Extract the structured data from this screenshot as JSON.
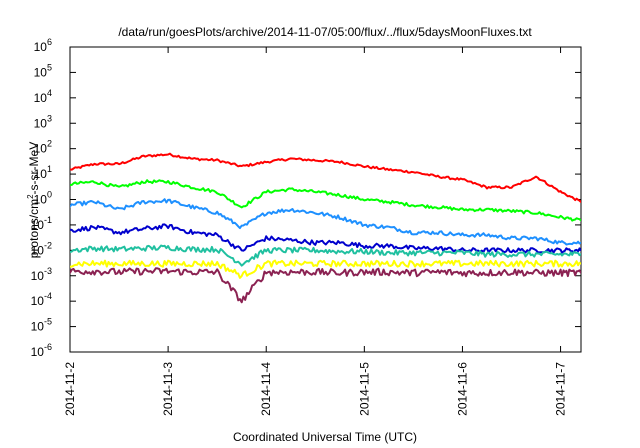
{
  "chart_data": {
    "type": "line",
    "title": "/data/run/goesPlots/archive/2014-11-07/05:00/flux/../flux/5daysMoonFluxes.txt",
    "xlabel": "Coordinated Universal Time (UTC)",
    "ylabel_parts": {
      "base": "protons/cm",
      "sup": "2",
      "rest": "-s-sr-MeV"
    },
    "x_axis": {
      "type": "date",
      "range": [
        "2014-11-02T00:00",
        "2014-11-07T05:00"
      ],
      "ticks": [
        "2014-11-2",
        "2014-11-3",
        "2014-11-4",
        "2014-11-5",
        "2014-11-6",
        "2014-11-7"
      ]
    },
    "y_axis": {
      "scale": "log",
      "range": [
        1e-06,
        1000000.0
      ],
      "tick_exponents": [
        "-6",
        "-5",
        "-4",
        "-3",
        "-2",
        "-1",
        "0",
        "1",
        "2",
        "3",
        "4",
        "5",
        "6"
      ],
      "tick_base": "10"
    },
    "grid": false,
    "legend": "none",
    "series": [
      {
        "color": "#ff0000",
        "x": [
          "2014-11-02T00:00",
          "2014-11-02T06:00",
          "2014-11-02T12:00",
          "2014-11-02T18:00",
          "2014-11-03T00:00",
          "2014-11-03T06:00",
          "2014-11-03T12:00",
          "2014-11-03T18:00",
          "2014-11-04T00:00",
          "2014-11-04T06:00",
          "2014-11-04T12:00",
          "2014-11-04T18:00",
          "2014-11-05T00:00",
          "2014-11-05T06:00",
          "2014-11-05T12:00",
          "2014-11-05T18:00",
          "2014-11-06T00:00",
          "2014-11-06T06:00",
          "2014-11-06T12:00",
          "2014-11-06T18:00",
          "2014-11-07T00:00",
          "2014-11-07T05:00"
        ],
        "y": [
          15,
          25,
          25,
          50,
          60,
          40,
          35,
          20,
          30,
          40,
          35,
          30,
          20,
          15,
          12,
          8,
          6,
          3,
          3,
          8,
          2,
          0.8
        ]
      },
      {
        "color": "#00ff00",
        "x": [
          "2014-11-02T00:00",
          "2014-11-02T06:00",
          "2014-11-02T12:00",
          "2014-11-02T18:00",
          "2014-11-03T00:00",
          "2014-11-03T06:00",
          "2014-11-03T12:00",
          "2014-11-03T18:00",
          "2014-11-04T00:00",
          "2014-11-04T06:00",
          "2014-11-04T12:00",
          "2014-11-04T18:00",
          "2014-11-05T00:00",
          "2014-11-05T06:00",
          "2014-11-05T12:00",
          "2014-11-05T18:00",
          "2014-11-06T00:00",
          "2014-11-06T06:00",
          "2014-11-06T12:00",
          "2014-11-06T18:00",
          "2014-11-07T00:00",
          "2014-11-07T05:00"
        ],
        "y": [
          4,
          5,
          3,
          5,
          5,
          3,
          2,
          0.5,
          2,
          2.5,
          2,
          1.5,
          1,
          0.8,
          0.6,
          0.5,
          0.4,
          0.4,
          0.35,
          0.3,
          0.2,
          0.15
        ]
      },
      {
        "color": "#1e90ff",
        "x": [
          "2014-11-02T00:00",
          "2014-11-02T06:00",
          "2014-11-02T12:00",
          "2014-11-02T18:00",
          "2014-11-03T00:00",
          "2014-11-03T06:00",
          "2014-11-03T12:00",
          "2014-11-03T18:00",
          "2014-11-04T00:00",
          "2014-11-04T06:00",
          "2014-11-04T12:00",
          "2014-11-04T18:00",
          "2014-11-05T00:00",
          "2014-11-05T06:00",
          "2014-11-05T12:00",
          "2014-11-05T18:00",
          "2014-11-06T00:00",
          "2014-11-06T06:00",
          "2014-11-06T12:00",
          "2014-11-06T18:00",
          "2014-11-07T00:00",
          "2014-11-07T05:00"
        ],
        "y": [
          0.6,
          0.8,
          0.4,
          0.8,
          0.9,
          0.5,
          0.3,
          0.08,
          0.3,
          0.4,
          0.3,
          0.2,
          0.1,
          0.08,
          0.05,
          0.05,
          0.04,
          0.04,
          0.03,
          0.03,
          0.02,
          0.02
        ]
      },
      {
        "color": "#0000cd",
        "x": [
          "2014-11-02T00:00",
          "2014-11-02T06:00",
          "2014-11-02T12:00",
          "2014-11-02T18:00",
          "2014-11-03T00:00",
          "2014-11-03T06:00",
          "2014-11-03T12:00",
          "2014-11-03T18:00",
          "2014-11-04T00:00",
          "2014-11-04T06:00",
          "2014-11-04T12:00",
          "2014-11-04T18:00",
          "2014-11-05T00:00",
          "2014-11-05T06:00",
          "2014-11-05T12:00",
          "2014-11-05T18:00",
          "2014-11-06T00:00",
          "2014-11-06T06:00",
          "2014-11-06T12:00",
          "2014-11-06T18:00",
          "2014-11-07T00:00",
          "2014-11-07T05:00"
        ],
        "y": [
          0.06,
          0.08,
          0.05,
          0.07,
          0.09,
          0.05,
          0.04,
          0.01,
          0.03,
          0.025,
          0.02,
          0.02,
          0.015,
          0.015,
          0.012,
          0.012,
          0.01,
          0.01,
          0.01,
          0.01,
          0.01,
          0.01
        ]
      },
      {
        "color": "#20c0a0",
        "x": [
          "2014-11-02T00:00",
          "2014-11-02T06:00",
          "2014-11-02T12:00",
          "2014-11-02T18:00",
          "2014-11-03T00:00",
          "2014-11-03T06:00",
          "2014-11-03T12:00",
          "2014-11-03T18:00",
          "2014-11-04T00:00",
          "2014-11-04T06:00",
          "2014-11-04T12:00",
          "2014-11-04T18:00",
          "2014-11-05T00:00",
          "2014-11-05T06:00",
          "2014-11-05T12:00",
          "2014-11-05T18:00",
          "2014-11-06T00:00",
          "2014-11-06T06:00",
          "2014-11-06T12:00",
          "2014-11-06T18:00",
          "2014-11-07T00:00",
          "2014-11-07T05:00"
        ],
        "y": [
          0.01,
          0.012,
          0.011,
          0.012,
          0.013,
          0.011,
          0.011,
          0.003,
          0.01,
          0.01,
          0.01,
          0.009,
          0.009,
          0.008,
          0.008,
          0.008,
          0.008,
          0.007,
          0.007,
          0.007,
          0.007,
          0.007
        ]
      },
      {
        "color": "#ffff00",
        "x": [
          "2014-11-02T00:00",
          "2014-11-02T06:00",
          "2014-11-02T12:00",
          "2014-11-02T18:00",
          "2014-11-03T00:00",
          "2014-11-03T06:00",
          "2014-11-03T12:00",
          "2014-11-03T18:00",
          "2014-11-04T00:00",
          "2014-11-04T06:00",
          "2014-11-04T12:00",
          "2014-11-04T18:00",
          "2014-11-05T00:00",
          "2014-11-05T06:00",
          "2014-11-05T12:00",
          "2014-11-05T18:00",
          "2014-11-06T00:00",
          "2014-11-06T06:00",
          "2014-11-06T12:00",
          "2014-11-06T18:00",
          "2014-11-07T00:00",
          "2014-11-07T05:00"
        ],
        "y": [
          0.003,
          0.003,
          0.003,
          0.003,
          0.003,
          0.003,
          0.003,
          0.001,
          0.003,
          0.003,
          0.003,
          0.003,
          0.003,
          0.003,
          0.003,
          0.003,
          0.003,
          0.003,
          0.003,
          0.003,
          0.003,
          0.003
        ]
      },
      {
        "color": "#8b2252",
        "x": [
          "2014-11-02T00:00",
          "2014-11-02T06:00",
          "2014-11-02T12:00",
          "2014-11-02T18:00",
          "2014-11-03T00:00",
          "2014-11-03T06:00",
          "2014-11-03T12:00",
          "2014-11-03T18:00",
          "2014-11-04T00:00",
          "2014-11-04T06:00",
          "2014-11-04T12:00",
          "2014-11-04T18:00",
          "2014-11-05T00:00",
          "2014-11-05T06:00",
          "2014-11-05T12:00",
          "2014-11-05T18:00",
          "2014-11-06T00:00",
          "2014-11-06T06:00",
          "2014-11-06T12:00",
          "2014-11-06T18:00",
          "2014-11-07T00:00",
          "2014-11-07T05:00"
        ],
        "y": [
          0.0015,
          0.0015,
          0.0014,
          0.0015,
          0.0015,
          0.0014,
          0.0014,
          0.0001,
          0.0014,
          0.0014,
          0.0014,
          0.0013,
          0.0014,
          0.0014,
          0.0013,
          0.0014,
          0.0013,
          0.0013,
          0.0014,
          0.0013,
          0.0013,
          0.0013
        ]
      }
    ]
  }
}
